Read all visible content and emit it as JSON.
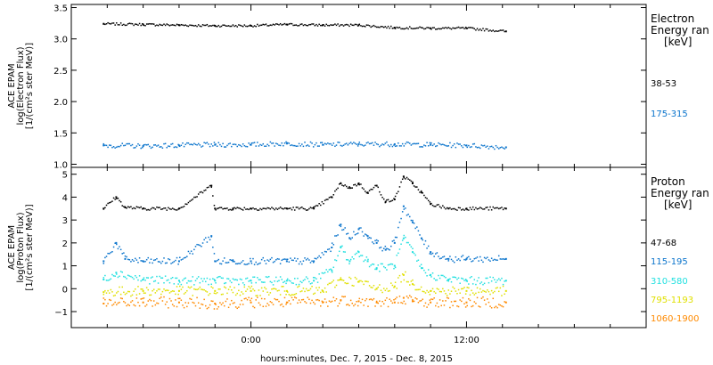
{
  "chart_data": {
    "type": "scatter",
    "x_axis": {
      "label": "hours:minutes, Dec.  7, 2015 - Dec.  8, 2015",
      "range_hours": [
        -10,
        22
      ],
      "ticks": [
        {
          "value": 0,
          "label": "0:00"
        },
        {
          "value": 12,
          "label": "12:00"
        }
      ],
      "minor_step_hours": 2
    },
    "panels": [
      {
        "id": "electron",
        "ylabel": [
          "ACE EPAM",
          "log(Electron Flux)",
          "[1/(cm²s ster MeV)]"
        ],
        "ylim": [
          0.95,
          3.55
        ],
        "yticks": [
          "1.0",
          "1.5",
          "2.0",
          "2.5",
          "3.0",
          "3.5"
        ],
        "ytick_values": [
          1.0,
          1.5,
          2.0,
          2.5,
          3.0,
          3.5
        ],
        "legend_title": [
          "Electron",
          "Energy ran",
          "[keV]"
        ],
        "series": [
          {
            "name": "38-53",
            "color": "#000000",
            "x": [
              -8.2,
              -6,
              -4,
              -2,
              0,
              2,
              4,
              6,
              8,
              10,
              12,
              14.2
            ],
            "y": [
              3.24,
              3.23,
              3.22,
              3.21,
              3.21,
              3.23,
              3.22,
              3.22,
              3.18,
              3.17,
              3.17,
              3.12
            ]
          },
          {
            "name": "175-315",
            "color": "#0a74cc",
            "x": [
              -8.2,
              -6,
              -4,
              -2,
              0,
              2,
              4,
              6,
              8,
              10,
              12,
              14.2
            ],
            "y": [
              1.3,
              1.29,
              1.3,
              1.31,
              1.31,
              1.33,
              1.31,
              1.32,
              1.32,
              1.31,
              1.3,
              1.27
            ]
          }
        ]
      },
      {
        "id": "proton",
        "ylabel": [
          "ACE EPAM",
          "log(Proton Flux)",
          "[1/(cm²s ster MeV)]"
        ],
        "ylim": [
          -1.7,
          5.3
        ],
        "yticks": [
          "−1",
          "0",
          "1",
          "2",
          "3",
          "4",
          "5"
        ],
        "ytick_values": [
          -1,
          0,
          1,
          2,
          3,
          4,
          5
        ],
        "legend_title": [
          "Proton",
          "Energy ran",
          "[keV]"
        ],
        "series": [
          {
            "name": "47-68",
            "color": "#000000",
            "x": [
              -8.2,
              -7.5,
              -7,
              -6,
              -4,
              -2.2,
              -2,
              -1,
              0,
              2,
              3.5,
              4.5,
              5,
              5.5,
              6,
              6.5,
              7,
              7.5,
              8,
              8.5,
              9,
              9.5,
              10,
              11,
              12,
              14.2
            ],
            "y": [
              3.5,
              4.0,
              3.55,
              3.5,
              3.5,
              4.5,
              3.5,
              3.5,
              3.5,
              3.5,
              3.5,
              4.0,
              4.6,
              4.4,
              4.6,
              4.2,
              4.5,
              3.8,
              3.9,
              4.9,
              4.6,
              4.2,
              3.7,
              3.5,
              3.5,
              3.5
            ]
          },
          {
            "name": "115-195",
            "color": "#0a74cc",
            "x": [
              -8.2,
              -7.5,
              -7,
              -6,
              -4,
              -2.2,
              -2,
              -1,
              0,
              2,
              3.5,
              4.5,
              5,
              5.5,
              6,
              6.5,
              7,
              7.5,
              8,
              8.5,
              9,
              9.5,
              10,
              11,
              12,
              14.2
            ],
            "y": [
              1.2,
              2.0,
              1.3,
              1.2,
              1.2,
              2.3,
              1.2,
              1.2,
              1.2,
              1.2,
              1.2,
              1.8,
              2.8,
              2.2,
              2.6,
              2.3,
              2.0,
              1.7,
              2.0,
              3.6,
              2.9,
              2.2,
              1.6,
              1.3,
              1.3,
              1.3
            ]
          },
          {
            "name": "310-580",
            "color": "#22e0e0",
            "x": [
              -8.2,
              -7.5,
              -6,
              -4,
              -2,
              0,
              2,
              3.5,
              4.5,
              5,
              5.5,
              6,
              6.5,
              7,
              8,
              8.5,
              9,
              9.5,
              10,
              11,
              12,
              14.2
            ],
            "y": [
              0.4,
              0.7,
              0.4,
              0.35,
              0.35,
              0.35,
              0.35,
              0.35,
              0.8,
              1.8,
              1.2,
              1.6,
              1.2,
              0.9,
              1.0,
              2.2,
              1.6,
              0.9,
              0.6,
              0.4,
              0.35,
              0.35
            ]
          },
          {
            "name": "795-1193",
            "color": "#e0e000",
            "x": [
              -8.2,
              -6,
              -4,
              -2,
              0,
              2,
              4,
              5,
              6,
              7,
              8,
              8.5,
              9,
              10,
              12,
              14.2
            ],
            "y": [
              -0.15,
              -0.1,
              -0.1,
              -0.1,
              -0.1,
              -0.1,
              -0.1,
              0.4,
              0.3,
              0.0,
              0.1,
              0.6,
              0.2,
              -0.1,
              -0.1,
              -0.1
            ]
          },
          {
            "name": "1060-1900",
            "color": "#ff8a00",
            "x": [
              -8.2,
              -6,
              -4,
              -2,
              0,
              2,
              4,
              5,
              6,
              7,
              8,
              8.5,
              9,
              10,
              12,
              14.2
            ],
            "y": [
              -0.65,
              -0.6,
              -0.6,
              -0.65,
              -0.6,
              -0.6,
              -0.6,
              -0.5,
              -0.55,
              -0.6,
              -0.6,
              -0.4,
              -0.55,
              -0.6,
              -0.6,
              -0.6
            ]
          }
        ]
      }
    ]
  }
}
